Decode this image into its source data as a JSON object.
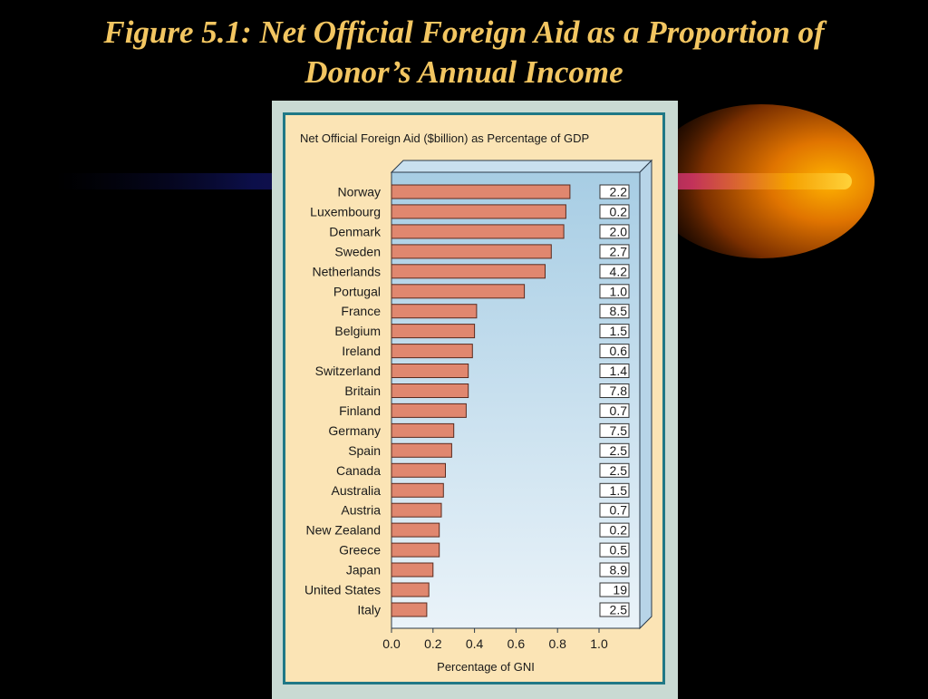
{
  "slide": {
    "title_line1": "Figure 5.1: Net Official Foreign Aid as a Proportion of",
    "title_line2": "Donor’s Annual Income"
  },
  "colors": {
    "background": "#000000",
    "title": "#f3c661",
    "bar": "#e0876f",
    "plot_area_top": "#a7cde4",
    "plot_area_bottom": "#eaf3f9",
    "panel": "#fbe4b5",
    "panel_border": "#1f7886"
  },
  "chart_data": {
    "type": "bar",
    "orientation": "horizontal",
    "title": "Net Official Foreign Aid ($billion) as Percentage of GDP",
    "xlabel": "Percentage of GNI",
    "ylabel": "",
    "xlim": [
      0,
      1.0
    ],
    "xticks": [
      "0.0",
      "0.2",
      "0.4",
      "0.6",
      "0.8",
      "1.0"
    ],
    "grid": false,
    "categories": [
      "Norway",
      "Luxembourg",
      "Denmark",
      "Sweden",
      "Netherlands",
      "Portugal",
      "France",
      "Belgium",
      "Ireland",
      "Switzerland",
      "Britain",
      "Finland",
      "Germany",
      "Spain",
      "Canada",
      "Australia",
      "Austria",
      "New Zealand",
      "Greece",
      "Japan",
      "United States",
      "Italy"
    ],
    "values": [
      0.86,
      0.84,
      0.83,
      0.77,
      0.74,
      0.64,
      0.41,
      0.4,
      0.39,
      0.37,
      0.37,
      0.36,
      0.3,
      0.29,
      0.26,
      0.25,
      0.24,
      0.23,
      0.23,
      0.2,
      0.18,
      0.17
    ],
    "aid_billion": [
      "2.2",
      "0.2",
      "2.0",
      "2.7",
      "4.2",
      "1.0",
      "8.5",
      "1.5",
      "0.6",
      "1.4",
      "7.8",
      "0.7",
      "7.5",
      "2.5",
      "2.5",
      "1.5",
      "0.7",
      "0.2",
      "0.5",
      "8.9",
      "19",
      "2.5"
    ]
  }
}
